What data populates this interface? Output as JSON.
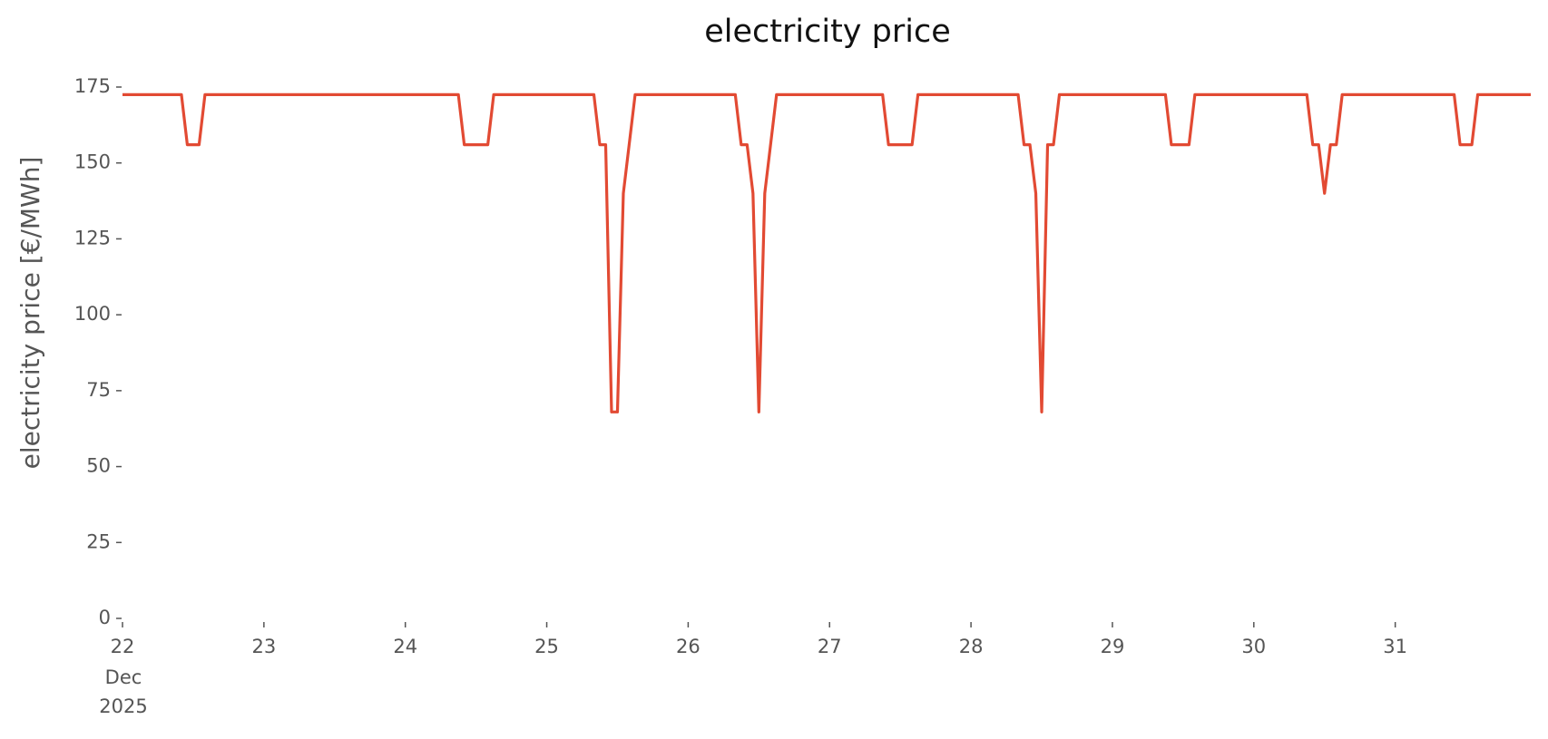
{
  "chart_data": {
    "type": "line",
    "title": "electricity price",
    "y_label": "electricity price [€/MWh]",
    "xtick_note": [
      "Dec",
      "2025"
    ],
    "xlim": [
      22,
      31.9583
    ],
    "xticks": [
      22,
      23,
      24,
      25,
      26,
      27,
      28,
      29,
      30,
      31
    ],
    "ylim": [
      0,
      175
    ],
    "yticks": [
      0,
      25,
      50,
      75,
      100,
      125,
      150,
      175
    ],
    "grid": false,
    "series": [
      {
        "color": "#e24a33",
        "x": [
          22,
          22.4167,
          22.4583,
          22.5417,
          22.5833,
          24.375,
          24.4167,
          24.5833,
          24.625,
          25.3333,
          25.375,
          25.4167,
          25.4583,
          25.5,
          25.5417,
          25.625,
          26.3333,
          26.375,
          26.4167,
          26.4583,
          26.5,
          26.5417,
          26.625,
          27.375,
          27.4167,
          27.5833,
          27.625,
          28.3333,
          28.375,
          28.4167,
          28.4583,
          28.5,
          28.5417,
          28.5833,
          28.625,
          29.375,
          29.4167,
          29.5417,
          29.5833,
          30.375,
          30.4167,
          30.4583,
          30.5,
          30.5417,
          30.5833,
          30.625,
          31.4167,
          31.4583,
          31.5417,
          31.5833,
          31.9583
        ],
        "values": [
          172.5,
          172.5,
          156,
          156,
          172.5,
          172.5,
          156,
          156,
          172.5,
          172.5,
          156,
          156,
          68,
          68,
          140,
          172.5,
          172.5,
          156,
          156,
          140,
          68,
          140,
          172.5,
          172.5,
          156,
          156,
          172.5,
          172.5,
          156,
          156,
          140,
          68,
          156,
          156,
          172.5,
          172.5,
          156,
          156,
          172.5,
          172.5,
          156,
          156,
          140,
          156,
          156,
          172.5,
          172.5,
          156,
          156,
          172.5,
          172.5
        ]
      }
    ]
  }
}
